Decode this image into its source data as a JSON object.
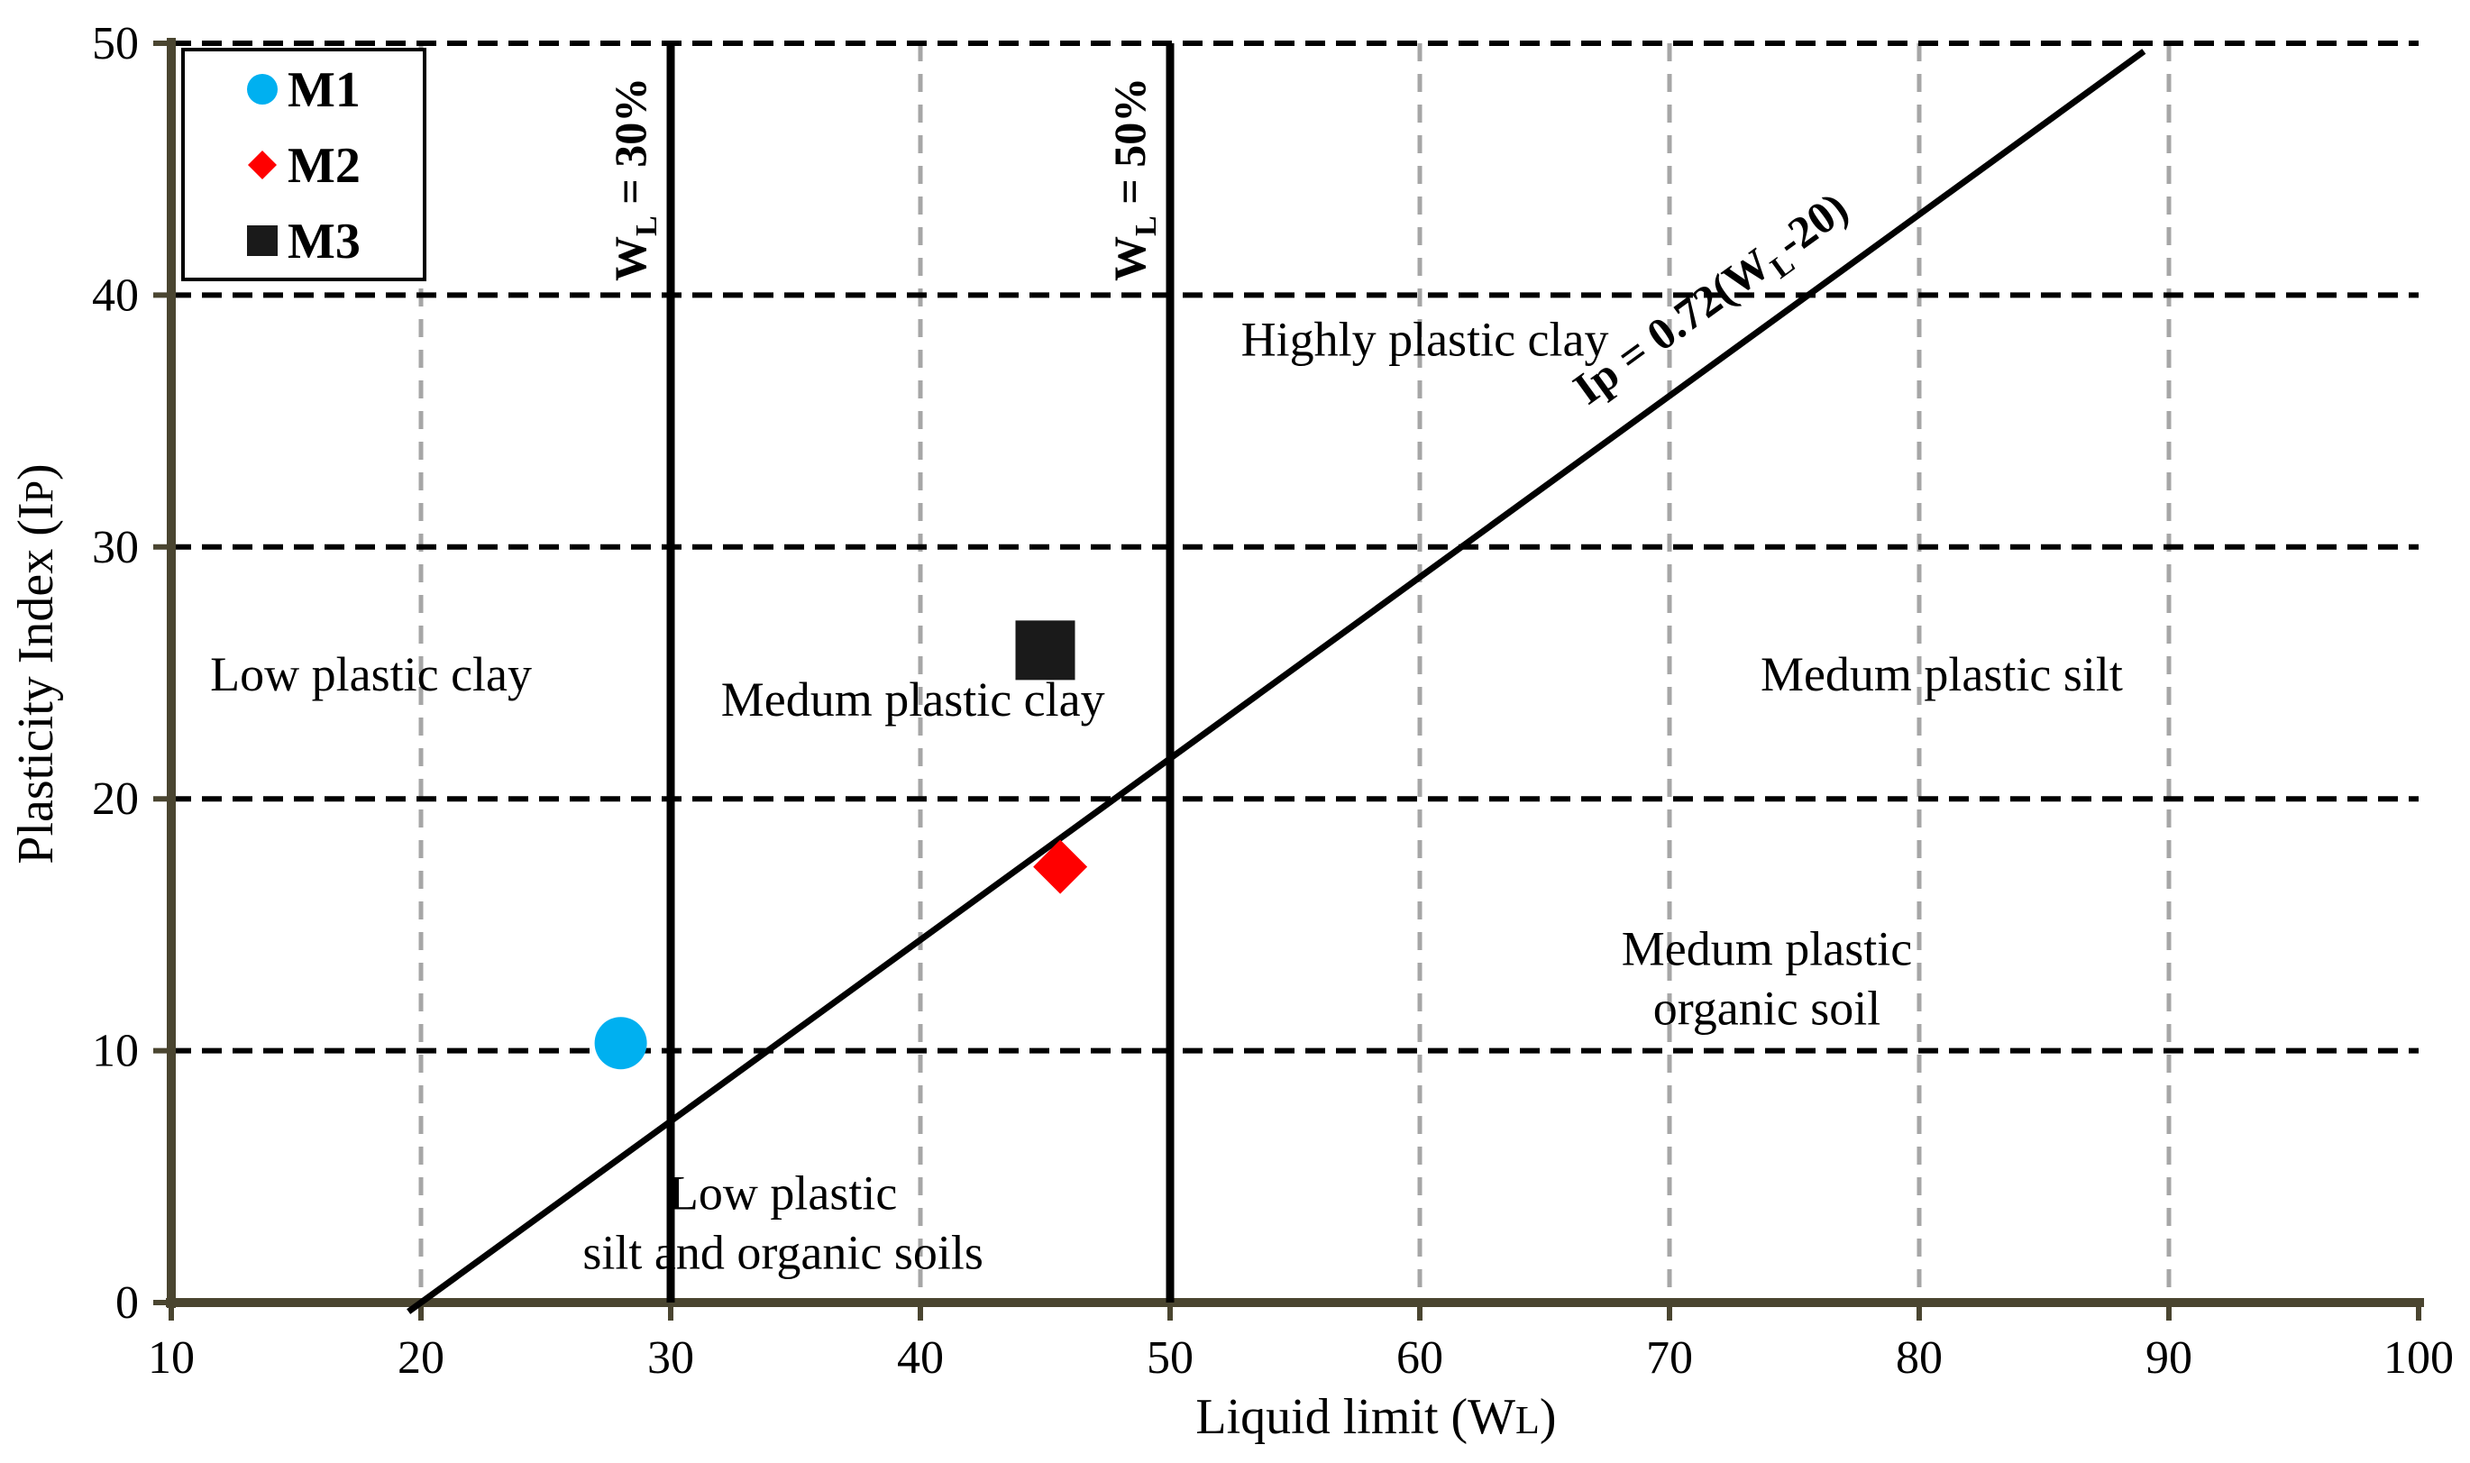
{
  "chart_data": {
    "type": "scatter",
    "title": "",
    "xlabel": "Liquid limit (WL)",
    "ylabel": "Plasticity Index (IP)",
    "xlim": [
      10,
      100
    ],
    "ylim": [
      0,
      50
    ],
    "x_ticks": [
      "10",
      "20",
      "30",
      "40",
      "50",
      "60",
      "70",
      "80",
      "90",
      "100"
    ],
    "y_ticks": [
      "0",
      "10",
      "20",
      "30",
      "40",
      "50"
    ],
    "grid": {
      "vertical": "dashed-gray",
      "horizontal": "dashed-black"
    },
    "legend_position": "top-left",
    "series": [
      {
        "name": "M1",
        "marker": "circle",
        "color": "#00b0f0",
        "x": 28.0,
        "y": 10.3
      },
      {
        "name": "M2",
        "marker": "diamond",
        "color": "#ff0000",
        "x": 45.6,
        "y": 17.3
      },
      {
        "name": "M3",
        "marker": "square",
        "color": "#1a1a1a",
        "x": 45.0,
        "y": 25.9
      }
    ],
    "reference_lines": [
      {
        "label_main": "W",
        "label_sub": "L",
        "label_rest": " = 30%",
        "type": "vertical",
        "x": 30,
        "y_range": [
          0,
          50
        ]
      },
      {
        "label_main": "W",
        "label_sub": "L",
        "label_rest": " = 50%",
        "type": "vertical",
        "x": 50,
        "y_range": [
          0,
          50
        ]
      },
      {
        "label_main": "Ip = 0.72(W",
        "label_sub": "L",
        "label_rest": "-20)",
        "type": "equation",
        "slope": 0.72,
        "x_intercept": 20,
        "x_range": [
          19.5,
          89
        ]
      }
    ],
    "region_labels": [
      {
        "lines": [
          "Low plastic clay"
        ],
        "x": 18,
        "y": 24.3
      },
      {
        "lines": [
          "Medum plastic clay"
        ],
        "x": 39.7,
        "y": 23.3
      },
      {
        "lines": [
          "Highly plastic clay"
        ],
        "x": 60.2,
        "y": 37.6
      },
      {
        "lines": [
          "Medum plastic silt"
        ],
        "x": 80.9,
        "y": 24.3
      },
      {
        "lines": [
          "Medum plastic",
          "organic soil"
        ],
        "x": 73.9,
        "y": 13.4
      },
      {
        "lines": [
          "Low plastic",
          "silt and organic soils"
        ],
        "x": 34.5,
        "y": 3.7
      }
    ]
  }
}
